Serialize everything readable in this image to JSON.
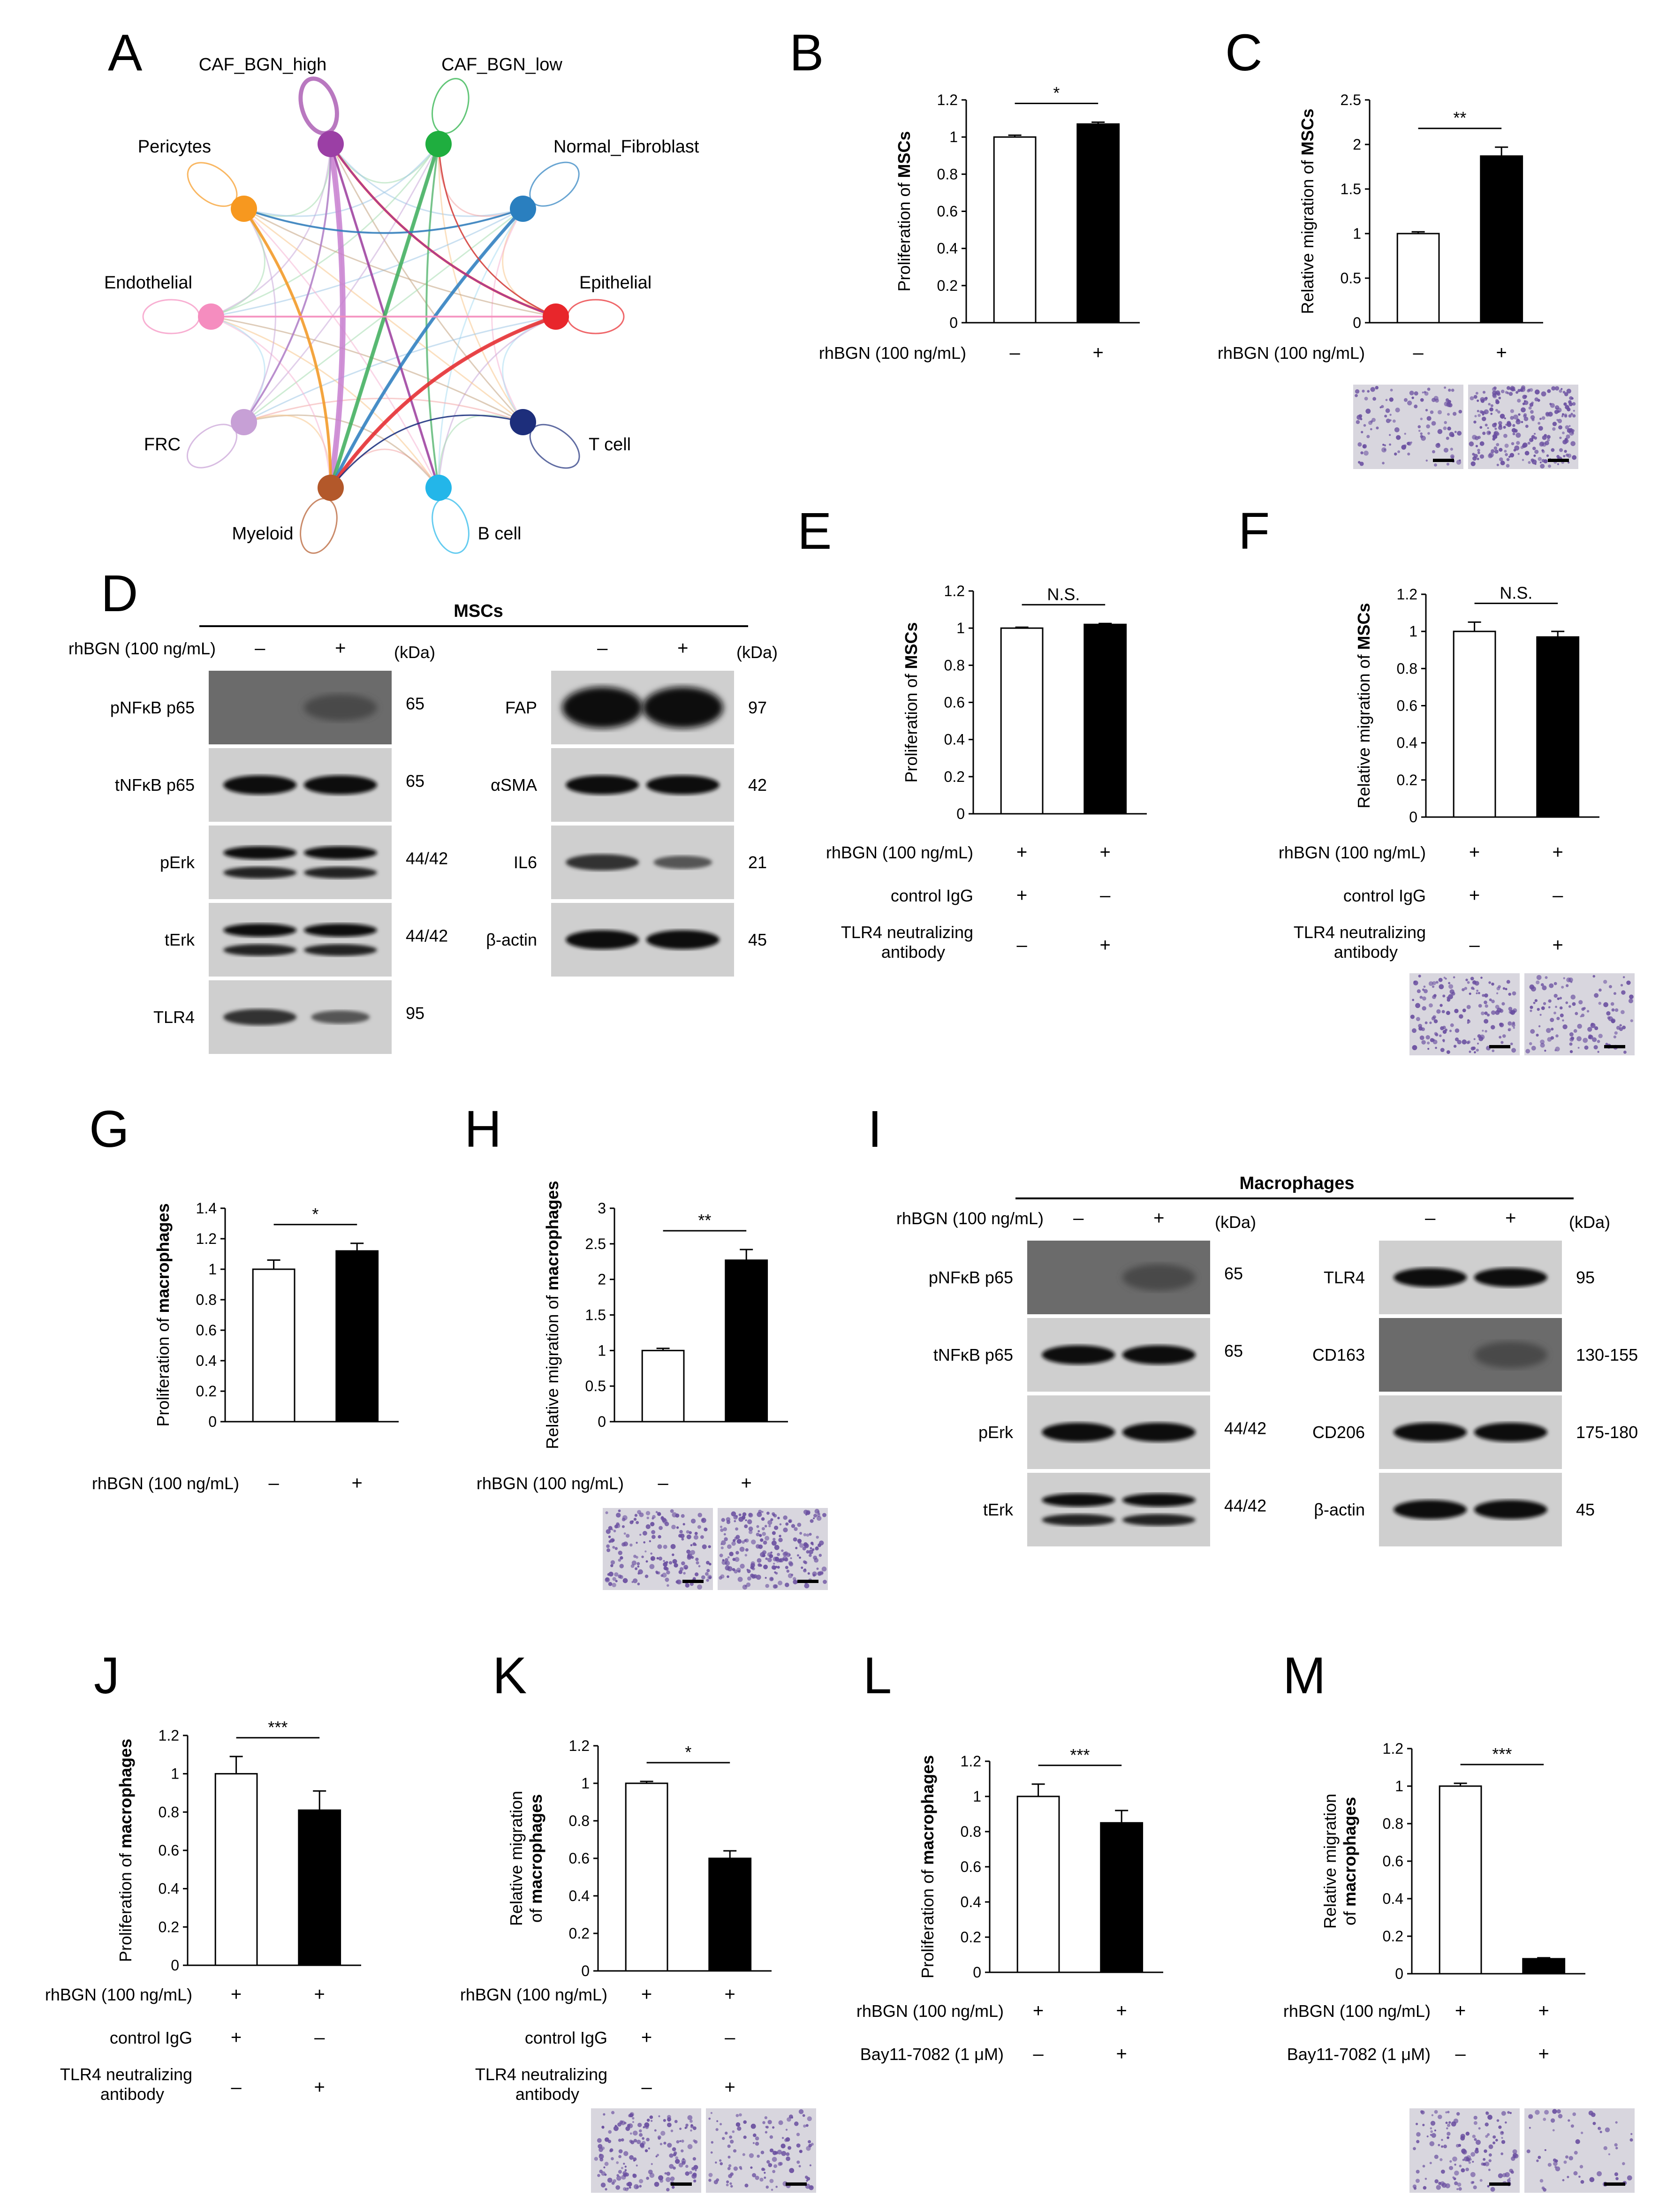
{
  "panels": {
    "A": {
      "letter": "A",
      "nodes": [
        {
          "name": "CAF_BGN_high",
          "color": "#9b3fa5"
        },
        {
          "name": "CAF_BGN_low",
          "color": "#1fae3f"
        },
        {
          "name": "Normal_Fibroblast",
          "color": "#2a7fbf"
        },
        {
          "name": "Epithelial",
          "color": "#e8262b"
        },
        {
          "name": "T cell",
          "color": "#1d2e7b"
        },
        {
          "name": "B cell",
          "color": "#23b6e9"
        },
        {
          "name": "Myeloid",
          "color": "#b3582a"
        },
        {
          "name": "FRC",
          "color": "#c7a0d6"
        },
        {
          "name": "Endothelial",
          "color": "#f58dbf"
        },
        {
          "name": "Pericytes",
          "color": "#f7981f"
        }
      ]
    },
    "D": {
      "letter": "D",
      "title": "MSCs",
      "treatment_label": "rhBGN (100 ng/mL)",
      "minus": "–",
      "plus": "+",
      "kda_label": "(kDa)",
      "left_blots": [
        {
          "name": "pNFκB p65",
          "kda": "65"
        },
        {
          "name": "tNFκB p65",
          "kda": "65"
        },
        {
          "name": "pErk",
          "kda": "44/42"
        },
        {
          "name": "tErk",
          "kda": "44/42"
        },
        {
          "name": "TLR4",
          "kda": "95"
        }
      ],
      "right_blots": [
        {
          "name": "FAP",
          "kda": "97"
        },
        {
          "name": "αSMA",
          "kda": "42"
        },
        {
          "name": "IL6",
          "kda": "21"
        },
        {
          "name": "β-actin",
          "kda": "45"
        }
      ]
    },
    "I": {
      "letter": "I",
      "title": "Macrophages",
      "treatment_label": "rhBGN (100 ng/mL)",
      "minus": "–",
      "plus": "+",
      "kda_label": "(kDa)",
      "left_blots": [
        {
          "name": "pNFκB p65",
          "kda": "65"
        },
        {
          "name": "tNFκB p65",
          "kda": "65"
        },
        {
          "name": "pErk",
          "kda": "44/42"
        },
        {
          "name": "tErk",
          "kda": "44/42"
        }
      ],
      "right_blots": [
        {
          "name": "TLR4",
          "kda": "95"
        },
        {
          "name": "CD163",
          "kda": "130-155"
        },
        {
          "name": "CD206",
          "kda": "175-180"
        },
        {
          "name": "β-actin",
          "kda": "45"
        }
      ]
    }
  },
  "chart_data": [
    {
      "panel": "B",
      "type": "bar",
      "ylabel_pre": "Proliferation of ",
      "ylabel_bold": "MSCs",
      "ylim": [
        0,
        1.2
      ],
      "ticks": [
        "0",
        "0.2",
        "0.4",
        "0.6",
        "0.8",
        "1",
        "1.2"
      ],
      "values": [
        1.0,
        1.07
      ],
      "errors": [
        0.01,
        0.01
      ],
      "sig": "*",
      "rows": [
        {
          "label": "rhBGN (100 ng/mL)",
          "marks": [
            "–",
            "+"
          ]
        }
      ]
    },
    {
      "panel": "C",
      "type": "bar",
      "ylabel_pre": "Relative migration of ",
      "ylabel_bold": "MSCs",
      "ylim": [
        0,
        2.5
      ],
      "ticks": [
        "0",
        "0.5",
        "1",
        "1.5",
        "2",
        "2.5"
      ],
      "values": [
        1.0,
        1.87
      ],
      "errors": [
        0.02,
        0.1
      ],
      "sig": "**",
      "rows": [
        {
          "label": "rhBGN (100 ng/mL)",
          "marks": [
            "–",
            "+"
          ]
        }
      ]
    },
    {
      "panel": "E",
      "type": "bar",
      "ylabel_pre": "Proliferation of ",
      "ylabel_bold": "MSCs",
      "ylim": [
        0,
        1.2
      ],
      "ticks": [
        "0",
        "0.2",
        "0.4",
        "0.6",
        "0.8",
        "1",
        "1.2"
      ],
      "values": [
        1.0,
        1.02
      ],
      "errors": [
        0.005,
        0.005
      ],
      "sig": "N.S.",
      "rows": [
        {
          "label": "rhBGN (100 ng/mL)",
          "marks": [
            "+",
            "+"
          ]
        },
        {
          "label": "control IgG",
          "marks": [
            "+",
            "–"
          ]
        },
        {
          "label": "TLR4 neutralizing antibody",
          "marks": [
            "–",
            "+"
          ]
        }
      ]
    },
    {
      "panel": "F",
      "type": "bar",
      "ylabel_pre": "Relative migration of ",
      "ylabel_bold": "MSCs",
      "ylim": [
        0,
        1.2
      ],
      "ticks": [
        "0",
        "0.2",
        "0.4",
        "0.6",
        "0.8",
        "1",
        "1.2"
      ],
      "values": [
        1.0,
        0.97
      ],
      "errors": [
        0.05,
        0.03
      ],
      "sig": "N.S.",
      "rows": [
        {
          "label": "rhBGN (100 ng/mL)",
          "marks": [
            "+",
            "+"
          ]
        },
        {
          "label": "control IgG",
          "marks": [
            "+",
            "–"
          ]
        },
        {
          "label": "TLR4 neutralizing antibody",
          "marks": [
            "–",
            "+"
          ]
        }
      ]
    },
    {
      "panel": "G",
      "type": "bar",
      "ylabel_pre": "Proliferation of ",
      "ylabel_bold": "macrophages",
      "ylim": [
        0,
        1.4
      ],
      "ticks": [
        "0",
        "0.2",
        "0.4",
        "0.6",
        "0.8",
        "1",
        "1.2",
        "1.4"
      ],
      "values": [
        1.0,
        1.12
      ],
      "errors": [
        0.06,
        0.05
      ],
      "sig": "*",
      "rows": [
        {
          "label": "rhBGN (100 ng/mL)",
          "marks": [
            "–",
            "+"
          ]
        }
      ]
    },
    {
      "panel": "H",
      "type": "bar",
      "ylabel_pre": "Relative migration of ",
      "ylabel_bold": "macrophages",
      "ylim": [
        0,
        3
      ],
      "ticks": [
        "0",
        "0.5",
        "1",
        "1.5",
        "2",
        "2.5",
        "3"
      ],
      "values": [
        1.0,
        2.27
      ],
      "errors": [
        0.03,
        0.15
      ],
      "sig": "**",
      "rows": [
        {
          "label": "rhBGN (100 ng/mL)",
          "marks": [
            "–",
            "+"
          ]
        }
      ]
    },
    {
      "panel": "J",
      "type": "bar",
      "ylabel_pre": "Proliferation of ",
      "ylabel_bold": "macrophages",
      "ylim": [
        0,
        1.2
      ],
      "ticks": [
        "0",
        "0.2",
        "0.4",
        "0.6",
        "0.8",
        "1",
        "1.2"
      ],
      "values": [
        1.0,
        0.81
      ],
      "errors": [
        0.09,
        0.1
      ],
      "sig": "***",
      "rows": [
        {
          "label": "rhBGN (100 ng/mL)",
          "marks": [
            "+",
            "+"
          ]
        },
        {
          "label": "control IgG",
          "marks": [
            "+",
            "–"
          ]
        },
        {
          "label": "TLR4 neutralizing antibody",
          "marks": [
            "–",
            "+"
          ]
        }
      ]
    },
    {
      "panel": "K",
      "type": "bar",
      "ylabel_pre": "Relative migration",
      "ylabel_pre2": "of ",
      "ylabel_bold": "macrophages",
      "ylim": [
        0,
        1.2
      ],
      "ticks": [
        "0",
        "0.2",
        "0.4",
        "0.6",
        "0.8",
        "1",
        "1.2"
      ],
      "values": [
        1.0,
        0.6
      ],
      "errors": [
        0.01,
        0.04
      ],
      "sig": "*",
      "rows": [
        {
          "label": "rhBGN (100 ng/mL)",
          "marks": [
            "+",
            "+"
          ]
        },
        {
          "label": "control IgG",
          "marks": [
            "+",
            "–"
          ]
        },
        {
          "label": "TLR4 neutralizing antibody",
          "marks": [
            "–",
            "+"
          ]
        }
      ]
    },
    {
      "panel": "L",
      "type": "bar",
      "ylabel_pre": "Proliferation of ",
      "ylabel_bold": "macrophages",
      "ylim": [
        0,
        1.2
      ],
      "ticks": [
        "0",
        "0.2",
        "0.4",
        "0.6",
        "0.8",
        "1",
        "1.2"
      ],
      "values": [
        1.0,
        0.85
      ],
      "errors": [
        0.07,
        0.07
      ],
      "sig": "***",
      "rows": [
        {
          "label": "rhBGN (100 ng/mL)",
          "marks": [
            "+",
            "+"
          ]
        },
        {
          "label": "Bay11-7082 (1 μM)",
          "marks": [
            "–",
            "+"
          ]
        }
      ]
    },
    {
      "panel": "M",
      "type": "bar",
      "ylabel_pre": "Relative migration",
      "ylabel_pre2": "of ",
      "ylabel_bold": "macrophages",
      "ylim": [
        0,
        1.2
      ],
      "ticks": [
        "0",
        "0.2",
        "0.4",
        "0.6",
        "0.8",
        "1",
        "1.2"
      ],
      "values": [
        1.0,
        0.08
      ],
      "errors": [
        0.015,
        0.005
      ],
      "sig": "***",
      "rows": [
        {
          "label": "rhBGN (100 ng/mL)",
          "marks": [
            "+",
            "+"
          ]
        },
        {
          "label": "Bay11-7082 (1 μM)",
          "marks": [
            "–",
            "+"
          ]
        }
      ]
    }
  ],
  "colors": {
    "bar_control": "#ffffff",
    "bar_treated": "#000000",
    "micrograph_bg": "#d8d6de",
    "cell_stain": "#6a4fa0"
  }
}
